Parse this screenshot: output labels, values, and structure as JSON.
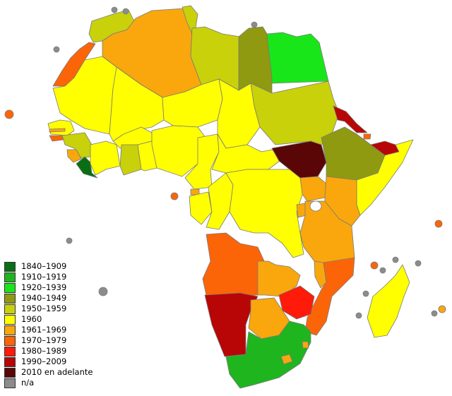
{
  "colors": {
    "1840_1909": "#0a6e14",
    "1910_1919": "#1fb51f",
    "1920_1939": "#19e619",
    "1940_1949": "#8f9a10",
    "1950_1959": "#c8d10a",
    "1960": "#ffff00",
    "1961_1969": "#f9a70c",
    "1970_1979": "#fc6408",
    "1980_1989": "#ff1a0a",
    "1990_2009": "#b80606",
    "2010_on": "#5a0606",
    "na": "#8c8c8c"
  },
  "legend": [
    {
      "label": "1840–1909",
      "color": "#0a6e14"
    },
    {
      "label": "1910–1919",
      "color": "#1fb51f"
    },
    {
      "label": "1920–1939",
      "color": "#19e619"
    },
    {
      "label": "1940–1949",
      "color": "#8f9a10"
    },
    {
      "label": "1950–1959",
      "color": "#c8d10a"
    },
    {
      "label": "1960",
      "color": "#ffff00"
    },
    {
      "label": "1961–1969",
      "color": "#f9a70c"
    },
    {
      "label": "1970–1979",
      "color": "#fc6408"
    },
    {
      "label": "1980–1989",
      "color": "#ff1a0a"
    },
    {
      "label": "1990–2009",
      "color": "#b80606"
    },
    {
      "label": "2010  en adelante",
      "color": "#5a0606"
    },
    {
      "label": "n/a",
      "color": "#8c8c8c"
    }
  ]
}
